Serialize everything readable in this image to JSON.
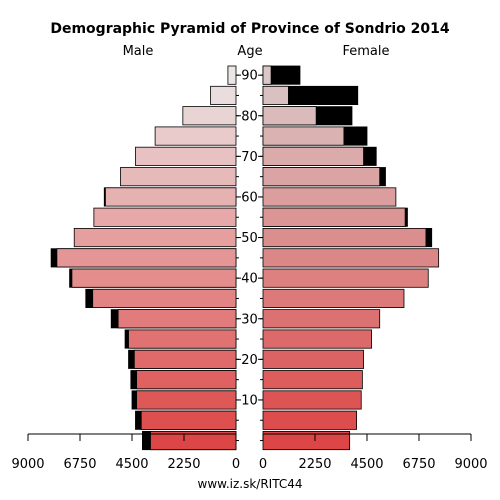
{
  "chart_data": {
    "type": "bar",
    "title": "Demographic Pyramid of Province of Sondrio 2014",
    "left_label": "Male",
    "center_label": "Age",
    "right_label": "Female",
    "footer": "www.iz.sk/RITC44",
    "age_groups": [
      "0-4",
      "5-9",
      "10-14",
      "15-19",
      "20-24",
      "25-29",
      "30-34",
      "35-39",
      "40-44",
      "45-49",
      "50-54",
      "55-59",
      "60-64",
      "65-69",
      "70-74",
      "75-79",
      "80-84",
      "85-89",
      "90+"
    ],
    "age_ticks": [
      "10",
      "20",
      "30",
      "40",
      "50",
      "60",
      "70",
      "80",
      "90"
    ],
    "male_xticks": [
      "9000",
      "6750",
      "4500",
      "2250",
      "0"
    ],
    "female_xticks": [
      "0",
      "2250",
      "4500",
      "6750",
      "9000"
    ],
    "xlim": [
      0,
      9000
    ],
    "series": [
      {
        "name": "Male",
        "values": [
          3700,
          4100,
          4300,
          4300,
          4400,
          4650,
          5100,
          6200,
          7100,
          7750,
          7000,
          6150,
          5650,
          5000,
          4350,
          3500,
          2300,
          1100,
          350
        ]
      },
      {
        "name": "Male",
        "values": [
          4050,
          4350,
          4500,
          4550,
          4650,
          4800,
          5400,
          6500,
          7200,
          8000,
          7000,
          6150,
          5700,
          5000,
          4350,
          3500,
          2300,
          1100,
          350
        ]
      },
      {
        "name": "Female",
        "values": [
          3750,
          4050,
          4250,
          4300,
          4350,
          4700,
          5050,
          6100,
          7150,
          7600,
          7050,
          6150,
          5750,
          5050,
          4350,
          3500,
          2300,
          1100,
          350
        ]
      },
      {
        "name": "Female",
        "values": [
          3750,
          4050,
          4250,
          4300,
          4350,
          4700,
          5050,
          6100,
          7150,
          7600,
          7300,
          6250,
          5750,
          5300,
          4900,
          4500,
          3850,
          4100,
          1600
        ]
      }
    ]
  }
}
